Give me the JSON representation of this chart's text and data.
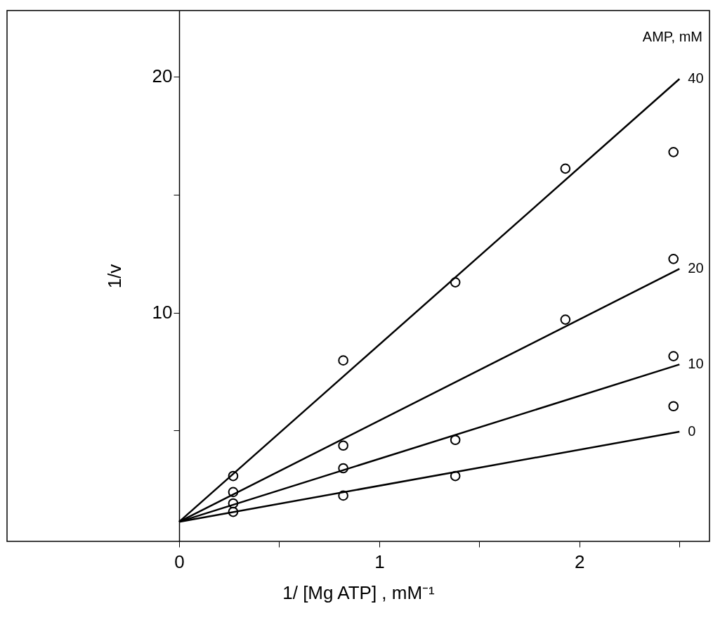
{
  "chart_data": {
    "type": "scatter",
    "xlabel": "1/ [Mg ATP] , mM⁻¹",
    "ylabel": "1/v",
    "legend_title": "AMP, mM",
    "xlim": [
      -0.86,
      2.65
    ],
    "ylim": [
      0.3,
      22.8
    ],
    "xticks": [
      0,
      {
        "value": 0.5,
        "label": null
      },
      1,
      {
        "value": 1.5,
        "label": null
      },
      2,
      {
        "value": 2.5,
        "label": null
      }
    ],
    "yticks": [
      {
        "value": 5,
        "label": null
      },
      10,
      {
        "value": 15,
        "label": null
      },
      20
    ],
    "grid": false,
    "series": [
      {
        "type": "line",
        "name": "40",
        "color": "#000000",
        "x": [
          0,
          2.5
        ],
        "values": [
          1.13,
          19.9
        ]
      },
      {
        "type": "line",
        "name": "20",
        "color": "#000000",
        "x": [
          0,
          2.5
        ],
        "values": [
          1.13,
          11.85
        ]
      },
      {
        "type": "line",
        "name": "10",
        "color": "#000000",
        "x": [
          0,
          2.5
        ],
        "values": [
          1.13,
          7.8
        ]
      },
      {
        "type": "line",
        "name": "0",
        "color": "#000000",
        "x": [
          0,
          2.5
        ],
        "values": [
          1.13,
          4.95
        ]
      },
      {
        "type": "scatter",
        "color": "#000000",
        "marker": "circle",
        "x": [
          0.27,
          0.82,
          1.38,
          1.93,
          2.47
        ],
        "values": [
          3.07,
          7.97,
          11.28,
          16.1,
          16.8
        ]
      },
      {
        "type": "scatter",
        "color": "#000000",
        "marker": "circle",
        "x": [
          0.27,
          0.82,
          1.93,
          2.47
        ],
        "values": [
          2.39,
          4.36,
          9.7,
          12.27
        ]
      },
      {
        "type": "scatter",
        "color": "#000000",
        "marker": "circle",
        "x": [
          0.27,
          0.82,
          1.38,
          2.47
        ],
        "values": [
          1.91,
          3.4,
          4.6,
          8.15
        ]
      },
      {
        "type": "scatter",
        "color": "#000000",
        "marker": "circle",
        "x": [
          0.27,
          0.82,
          1.38,
          2.47
        ],
        "values": [
          1.55,
          2.24,
          3.07,
          6.03
        ]
      }
    ]
  }
}
